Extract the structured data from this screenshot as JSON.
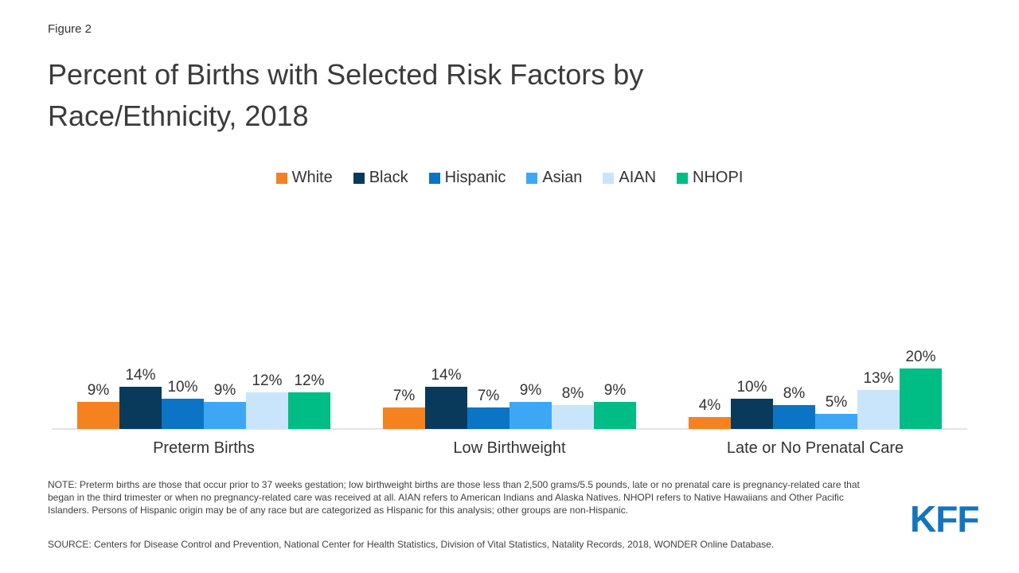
{
  "figure_label": "Figure 2",
  "title": "Percent of Births with Selected Risk Factors by Race/Ethnicity, 2018",
  "logo_text": "KFF",
  "note": "NOTE: Preterm births are those that occur prior to 37 weeks gestation; low birthweight births are those less than 2,500 grams/5.5 pounds, late or no prenatal care is pregnancy-related care that began in the third trimester or when no pregnancy-related care was received at all. AIAN refers to American Indians and Alaska Natives. NHOPI refers to Native Hawaiians and Other Pacific Islanders. Persons of Hispanic origin may be of any race but are categorized as Hispanic for this analysis; other groups are non-Hispanic.",
  "source": "SOURCE: Centers for Disease Control and Prevention, National Center for Health Statistics, Division of Vital Statistics, Natality Records, 2018, WONDER Online Database.",
  "colors": {
    "axis_line": "#e4e4e4",
    "text_dark": "#3b3b3b",
    "kff_blue": "#1474be"
  },
  "chart_data": {
    "type": "bar",
    "title": "Percent of Births with Selected Risk Factors by Race/Ethnicity, 2018",
    "categories": [
      "Preterm Births",
      "Low Birthweight",
      "Late or No Prenatal Care"
    ],
    "series": [
      {
        "name": "White",
        "color": "#f5821f",
        "values": [
          9,
          7,
          4
        ]
      },
      {
        "name": "Black",
        "color": "#093a5c",
        "values": [
          14,
          14,
          10
        ]
      },
      {
        "name": "Hispanic",
        "color": "#0b74c4",
        "values": [
          10,
          7,
          8
        ]
      },
      {
        "name": "Asian",
        "color": "#3da7f5",
        "values": [
          9,
          9,
          5
        ]
      },
      {
        "name": "AIAN",
        "color": "#c9e5fb",
        "values": [
          12,
          8,
          13
        ]
      },
      {
        "name": "NHOPI",
        "color": "#00bc85",
        "values": [
          12,
          9,
          20
        ]
      }
    ],
    "data_labels": true,
    "data_label_suffix": "%",
    "ylim": [
      0,
      21
    ],
    "grid": false,
    "legend_position": "top-center",
    "xlabel": "",
    "ylabel": ""
  }
}
